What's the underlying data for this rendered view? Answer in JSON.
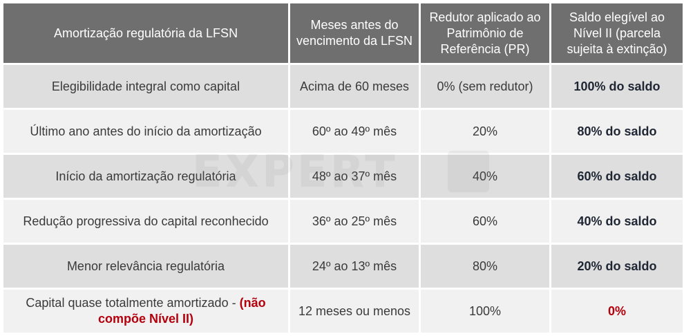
{
  "table": {
    "headers": [
      "Amortização regulatória da LFSN",
      "Meses antes do vencimento da LFSN",
      "Redutor aplicado ao Patrimônio de Referência (PR)",
      "Saldo elegível ao Nível II (parcela sujeita à extinção)"
    ],
    "rows": [
      {
        "fase": "Elegibilidade integral como capital",
        "meses": "Acima de 60 meses",
        "redutor": "0% (sem redutor)",
        "saldo": "100% do saldo"
      },
      {
        "fase": "Último ano antes do início da amortização",
        "meses": "60º ao 49º mês",
        "redutor": "20%",
        "saldo": "80% do saldo"
      },
      {
        "fase": "Início da amortização regulatória",
        "meses": "48º ao 37º mês",
        "redutor": "40%",
        "saldo": "60% do saldo"
      },
      {
        "fase": "Redução progressiva do capital reconhecido",
        "meses": "36º ao 25º mês",
        "redutor": "60%",
        "saldo": "40% do saldo"
      },
      {
        "fase": "Menor relevância regulatória",
        "meses": "24º ao 13º mês",
        "redutor": "80%",
        "saldo": "20% do saldo"
      },
      {
        "fase": "Capital quase totalmente amortizado - ",
        "fase_alert": "(não compõe Nível II)",
        "meses": "12 meses ou menos",
        "redutor": "100%",
        "saldo": "0%"
      }
    ]
  },
  "watermark": {
    "text": "EXPERT"
  },
  "colors": {
    "header_bg": "#6f6f6f",
    "row_dark": "#dedede",
    "row_light": "#f1f1f1",
    "alert": "#b3000c"
  }
}
